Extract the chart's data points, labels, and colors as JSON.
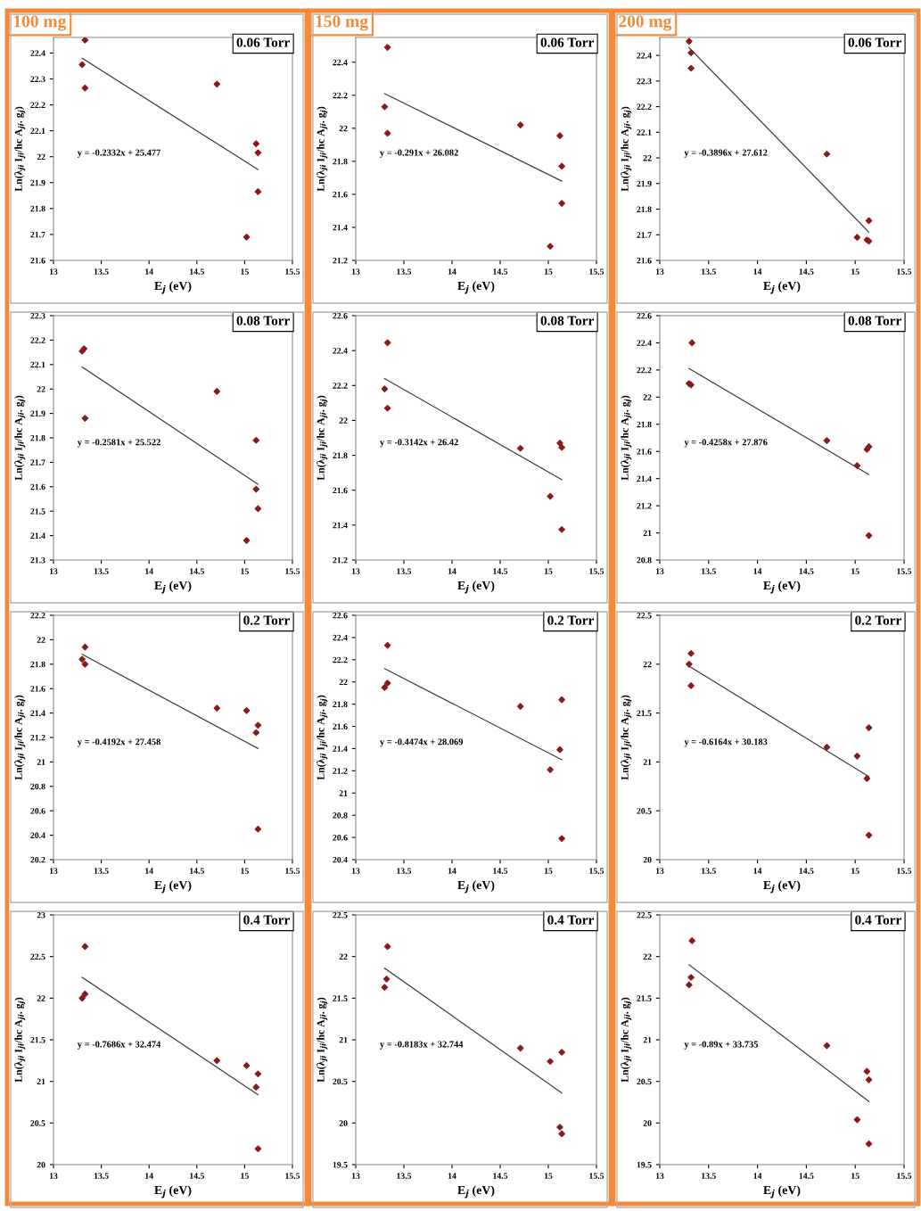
{
  "chart_data": [
    {
      "type": "scatter",
      "title": "0.06 Torr",
      "subtitle": "100 mg",
      "xlabel": "E$_{j}$ (eV)",
      "ylabel": "Ln(λ$_{ji}$ I$_{ji}$/hc A$_{ji}$. g$_{j}$)",
      "annotations": [
        "y = -0.2332x + 25.477"
      ],
      "xlim": [
        13,
        15.5
      ],
      "xticks": [
        13,
        13.5,
        14,
        14.5,
        15,
        15.5
      ],
      "ylim": [
        21.6,
        22.46
      ],
      "yticks": [
        21.6,
        21.7,
        21.8,
        21.9,
        22,
        22.1,
        22.2,
        22.3,
        22.4
      ],
      "grid": false,
      "series": [
        {
          "marker": "diamond",
          "color": "#8b1a1a",
          "x": [
            13.3,
            13.33,
            13.33,
            14.71,
            15.12,
            15.14,
            15.14,
            15.02
          ],
          "values": [
            22.355,
            22.45,
            22.265,
            22.28,
            22.05,
            22.015,
            21.865,
            21.69
          ]
        },
        {
          "type": "line",
          "color": "#404040",
          "x": [
            13.3,
            15.14
          ],
          "values": [
            22.38,
            21.95
          ]
        }
      ]
    },
    {
      "type": "scatter",
      "title": "0.06 Torr",
      "subtitle": "150 mg",
      "xlabel": "E$_{j}$ (eV)",
      "ylabel": "Ln(λ$_{ji}$ I$_{ji}$/hc A$_{ji}$. g$_{j}$)",
      "annotations": [
        "y = -0.291x + 26.082"
      ],
      "xlim": [
        13,
        15.5
      ],
      "xticks": [
        13,
        13.5,
        14,
        14.5,
        15,
        15.5
      ],
      "ylim": [
        21.2,
        22.55
      ],
      "yticks": [
        21.2,
        21.4,
        21.6,
        21.8,
        22,
        22.2,
        22.4
      ],
      "grid": false,
      "series": [
        {
          "marker": "diamond",
          "color": "#8b1a1a",
          "x": [
            13.3,
            13.33,
            13.33,
            14.71,
            15.12,
            15.14,
            15.14,
            15.02
          ],
          "values": [
            22.13,
            22.49,
            21.97,
            22.02,
            21.955,
            21.77,
            21.545,
            21.285
          ]
        },
        {
          "type": "line",
          "color": "#404040",
          "x": [
            13.3,
            15.14
          ],
          "values": [
            22.21,
            21.68
          ]
        }
      ]
    },
    {
      "type": "scatter",
      "title": "0.06 Torr",
      "subtitle": "200 mg",
      "xlabel": "E$_{j}$ (eV)",
      "ylabel": "Ln(λ$_{ji}$ I$_{ji}$/hc A$_{ji}$. g$_{j}$)",
      "annotations": [
        "y = -0.3896x + 27.612"
      ],
      "xlim": [
        13,
        15.5
      ],
      "xticks": [
        13,
        13.5,
        14,
        14.5,
        15,
        15.5
      ],
      "ylim": [
        21.6,
        22.47
      ],
      "yticks": [
        21.6,
        21.7,
        21.8,
        21.9,
        22,
        22.1,
        22.2,
        22.3,
        22.4
      ],
      "grid": false,
      "series": [
        {
          "marker": "diamond",
          "color": "#8b1a1a",
          "x": [
            13.3,
            13.32,
            13.32,
            14.71,
            15.02,
            15.12,
            15.14,
            15.14
          ],
          "values": [
            22.455,
            22.41,
            22.35,
            22.015,
            21.69,
            21.68,
            21.675,
            21.755
          ]
        },
        {
          "type": "line",
          "color": "#404040",
          "x": [
            13.3,
            15.14
          ],
          "values": [
            22.43,
            21.71
          ]
        }
      ]
    },
    {
      "type": "scatter",
      "title": "0.08 Torr",
      "xlabel": "E$_{j}$ (eV)",
      "ylabel": "Ln(λ$_{ji}$ I$_{ji}$/hc A$_{ji}$. g$_{j}$)",
      "annotations": [
        "y = -0.2581x + 25.522"
      ],
      "xlim": [
        13,
        15.5
      ],
      "xticks": [
        13,
        13.5,
        14,
        14.5,
        15,
        15.5
      ],
      "ylim": [
        21.3,
        22.3
      ],
      "yticks": [
        21.3,
        21.4,
        21.5,
        21.6,
        21.7,
        21.8,
        21.9,
        22,
        22.1,
        22.2,
        22.3
      ],
      "grid": false,
      "series": [
        {
          "marker": "diamond",
          "color": "#8b1a1a",
          "x": [
            13.3,
            13.32,
            13.33,
            14.71,
            15.12,
            15.12,
            15.14,
            15.02
          ],
          "values": [
            22.155,
            22.165,
            21.88,
            21.99,
            21.79,
            21.59,
            21.51,
            21.38
          ]
        },
        {
          "type": "line",
          "color": "#404040",
          "x": [
            13.3,
            15.14
          ],
          "values": [
            22.09,
            21.61
          ]
        }
      ]
    },
    {
      "type": "scatter",
      "title": "0.08 Torr",
      "xlabel": "E$_{j}$ (eV)",
      "ylabel": "Ln(λ$_{ji}$ I$_{ji}$/hc A$_{ji}$. g$_{j}$)",
      "annotations": [
        "y = -0.3142x + 26.42"
      ],
      "xlim": [
        13,
        15.5
      ],
      "xticks": [
        13,
        13.5,
        14,
        14.5,
        15,
        15.5
      ],
      "ylim": [
        21.2,
        22.6
      ],
      "yticks": [
        21.2,
        21.4,
        21.6,
        21.8,
        22,
        22.2,
        22.4,
        22.6
      ],
      "grid": false,
      "series": [
        {
          "marker": "diamond",
          "color": "#8b1a1a",
          "x": [
            13.3,
            13.33,
            13.33,
            14.71,
            15.12,
            15.14,
            15.02,
            15.14
          ],
          "values": [
            22.18,
            22.445,
            22.07,
            21.84,
            21.87,
            21.845,
            21.565,
            21.375
          ]
        },
        {
          "type": "line",
          "color": "#404040",
          "x": [
            13.3,
            15.14
          ],
          "values": [
            22.24,
            21.66
          ]
        }
      ]
    },
    {
      "type": "scatter",
      "title": "0.08 Torr",
      "xlabel": "E$_{j}$ (eV)",
      "ylabel": "Ln(λ$_{ji}$ I$_{ji}$/hc A$_{ji}$. g$_{j}$)",
      "annotations": [
        "y = -0.4258x + 27.876"
      ],
      "xlim": [
        13,
        15.5
      ],
      "xticks": [
        13,
        13.5,
        14,
        14.5,
        15,
        15.5
      ],
      "ylim": [
        20.8,
        22.6
      ],
      "yticks": [
        20.8,
        21,
        21.2,
        21.4,
        21.6,
        21.8,
        22,
        22.2,
        22.4,
        22.6
      ],
      "grid": false,
      "series": [
        {
          "marker": "diamond",
          "color": "#8b1a1a",
          "x": [
            13.3,
            13.32,
            13.33,
            14.71,
            15.02,
            15.12,
            15.14,
            15.14
          ],
          "values": [
            22.1,
            22.09,
            22.4,
            21.68,
            21.495,
            21.615,
            21.635,
            20.98
          ]
        },
        {
          "type": "line",
          "color": "#404040",
          "x": [
            13.3,
            15.14
          ],
          "values": [
            22.21,
            21.43
          ]
        }
      ]
    },
    {
      "type": "scatter",
      "title": "0.2 Torr",
      "xlabel": "E$_{j}$ (eV)",
      "ylabel": "Ln(λ$_{ji}$ I$_{ji}$/hc A$_{ji}$. g$_{j}$)",
      "annotations": [
        "y = -0.4192x + 27.458"
      ],
      "xlim": [
        13,
        15.5
      ],
      "xticks": [
        13,
        13.5,
        14,
        14.5,
        15,
        15.5
      ],
      "ylim": [
        20.2,
        22.2
      ],
      "yticks": [
        20.2,
        20.4,
        20.6,
        20.8,
        21,
        21.2,
        21.4,
        21.6,
        21.8,
        22,
        22.2
      ],
      "grid": false,
      "series": [
        {
          "marker": "diamond",
          "color": "#8b1a1a",
          "x": [
            13.3,
            13.33,
            13.33,
            14.71,
            15.02,
            15.14,
            15.12,
            15.14
          ],
          "values": [
            21.84,
            21.94,
            21.8,
            21.44,
            21.42,
            21.3,
            21.24,
            20.45
          ]
        },
        {
          "type": "line",
          "color": "#404040",
          "x": [
            13.3,
            15.14
          ],
          "values": [
            21.88,
            21.11
          ]
        }
      ]
    },
    {
      "type": "scatter",
      "title": "0.2 Torr",
      "xlabel": "E$_{j}$ (eV)",
      "ylabel": "Ln(λ$_{ji}$ I$_{ji}$/hc A$_{ji}$. g$_{j}$)",
      "annotations": [
        "y = -0.4474x + 28.069"
      ],
      "xlim": [
        13,
        15.5
      ],
      "xticks": [
        13,
        13.5,
        14,
        14.5,
        15,
        15.5
      ],
      "ylim": [
        20.4,
        22.6
      ],
      "yticks": [
        20.4,
        20.6,
        20.8,
        21,
        21.2,
        21.4,
        21.6,
        21.8,
        22,
        22.2,
        22.4,
        22.6
      ],
      "grid": false,
      "series": [
        {
          "marker": "diamond",
          "color": "#8b1a1a",
          "x": [
            13.3,
            13.33,
            13.33,
            14.71,
            15.14,
            15.12,
            15.02,
            15.14
          ],
          "values": [
            21.95,
            21.99,
            22.33,
            21.78,
            21.84,
            21.39,
            21.21,
            20.59
          ]
        },
        {
          "type": "line",
          "color": "#404040",
          "x": [
            13.3,
            15.14
          ],
          "values": [
            22.12,
            21.3
          ]
        }
      ]
    },
    {
      "type": "scatter",
      "title": "0.2 Torr",
      "xlabel": "E$_{j}$ (eV)",
      "ylabel": "Ln(λ$_{ji}$ I$_{ji}$/hc A$_{ji}$. g$_{j}$)",
      "annotations": [
        "y = -0.6164x + 30.183"
      ],
      "xlim": [
        13,
        15.5
      ],
      "xticks": [
        13,
        13.5,
        14,
        14.5,
        15,
        15.5
      ],
      "ylim": [
        20,
        22.5
      ],
      "yticks": [
        20,
        20.5,
        21,
        21.5,
        22,
        22.5
      ],
      "grid": false,
      "series": [
        {
          "marker": "diamond",
          "color": "#8b1a1a",
          "x": [
            13.3,
            13.32,
            13.32,
            14.71,
            15.02,
            15.14,
            15.12,
            15.14
          ],
          "values": [
            22.0,
            22.11,
            21.78,
            21.15,
            21.06,
            21.35,
            20.83,
            20.25
          ]
        },
        {
          "type": "line",
          "color": "#404040",
          "x": [
            13.3,
            15.14
          ],
          "values": [
            21.98,
            20.85
          ]
        }
      ]
    },
    {
      "type": "scatter",
      "title": "0.4 Torr",
      "xlabel": "E$_{j}$ (eV)",
      "ylabel": "Ln(λ$_{ji}$ I$_{ji}$/hc A$_{ji}$. g$_{j}$)",
      "annotations": [
        "y = -0.7686x + 32.474"
      ],
      "xlim": [
        13,
        15.5
      ],
      "xticks": [
        13,
        13.5,
        14,
        14.5,
        15,
        15.5
      ],
      "ylim": [
        20,
        23
      ],
      "yticks": [
        20,
        20.5,
        21,
        21.5,
        22,
        22.5,
        23
      ],
      "grid": false,
      "series": [
        {
          "marker": "diamond",
          "color": "#8b1a1a",
          "x": [
            13.3,
            13.33,
            13.33,
            14.71,
            15.02,
            15.14,
            15.12,
            15.14
          ],
          "values": [
            22.0,
            22.62,
            22.05,
            21.25,
            21.19,
            21.09,
            20.93,
            20.19
          ]
        },
        {
          "type": "line",
          "color": "#404040",
          "x": [
            13.3,
            15.14
          ],
          "values": [
            22.25,
            20.84
          ]
        }
      ]
    },
    {
      "type": "scatter",
      "title": "0.4 Torr",
      "xlabel": "E$_{j}$ (eV)",
      "ylabel": "Ln(λ$_{ji}$ I$_{ji}$/hc A$_{ji}$. g$_{j}$)",
      "annotations": [
        "y = -0.8183x + 32.744"
      ],
      "xlim": [
        13,
        15.5
      ],
      "xticks": [
        13,
        13.5,
        14,
        14.5,
        15,
        15.5
      ],
      "ylim": [
        19.5,
        22.5
      ],
      "yticks": [
        19.5,
        20,
        20.5,
        21,
        21.5,
        22,
        22.5
      ],
      "grid": false,
      "series": [
        {
          "marker": "diamond",
          "color": "#8b1a1a",
          "x": [
            13.3,
            13.32,
            13.33,
            14.71,
            15.02,
            15.14,
            15.12,
            15.14
          ],
          "values": [
            21.63,
            21.73,
            22.12,
            20.9,
            20.74,
            20.85,
            19.95,
            19.87
          ]
        },
        {
          "type": "line",
          "color": "#404040",
          "x": [
            13.3,
            15.14
          ],
          "values": [
            21.86,
            20.36
          ]
        }
      ]
    },
    {
      "type": "scatter",
      "title": "0.4 Torr",
      "xlabel": "E$_{j}$ (eV)",
      "ylabel": "Ln(λ$_{ji}$ I$_{ji}$/hc A$_{ji}$. g$_{j}$)",
      "annotations": [
        "y = -0.89x + 33.735"
      ],
      "xlim": [
        13,
        15.5
      ],
      "xticks": [
        13,
        13.5,
        14,
        14.5,
        15,
        15.5
      ],
      "ylim": [
        19.5,
        22.5
      ],
      "yticks": [
        19.5,
        20,
        20.5,
        21,
        21.5,
        22,
        22.5
      ],
      "grid": false,
      "series": [
        {
          "marker": "diamond",
          "color": "#8b1a1a",
          "x": [
            13.3,
            13.32,
            13.33,
            14.71,
            15.12,
            15.14,
            15.02,
            15.14
          ],
          "values": [
            21.66,
            21.75,
            22.19,
            20.93,
            20.62,
            20.52,
            20.04,
            19.75
          ]
        },
        {
          "type": "line",
          "color": "#404040",
          "x": [
            13.3,
            15.14
          ],
          "values": [
            21.9,
            20.26
          ]
        }
      ]
    }
  ]
}
